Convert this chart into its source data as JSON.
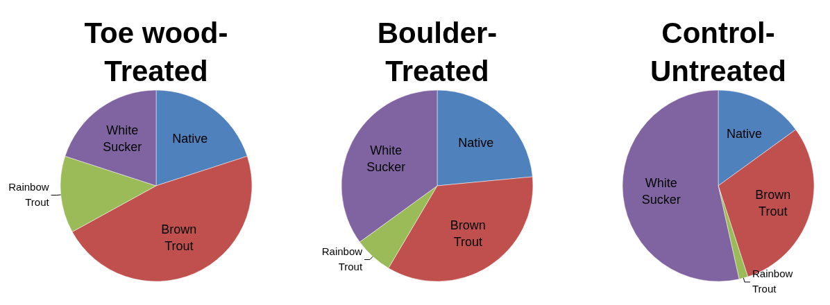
{
  "chart_data": [
    {
      "type": "pie",
      "title": "Toe wood-Treated",
      "categories": [
        "Native",
        "Brown Trout",
        "Rainbow Trout",
        "White Sucker"
      ],
      "values": [
        20,
        47,
        13,
        20
      ],
      "colors": [
        "#4f81bd",
        "#c0504d",
        "#9bbb59",
        "#8064a2"
      ]
    },
    {
      "type": "pie",
      "title": "Boulder-Treated",
      "categories": [
        "Native",
        "Brown Trout",
        "Rainbow Trout",
        "White Sucker"
      ],
      "values": [
        23.5,
        35,
        6.5,
        35
      ],
      "colors": [
        "#4f81bd",
        "#c0504d",
        "#9bbb59",
        "#8064a2"
      ]
    },
    {
      "type": "pie",
      "title": "Control-Untreated",
      "categories": [
        "Native",
        "Brown Trout",
        "Rainbow Trout",
        "White Sucker"
      ],
      "values": [
        15,
        30,
        1.5,
        53.5
      ],
      "colors": [
        "#4f81bd",
        "#c0504d",
        "#9bbb59",
        "#8064a2"
      ]
    }
  ]
}
